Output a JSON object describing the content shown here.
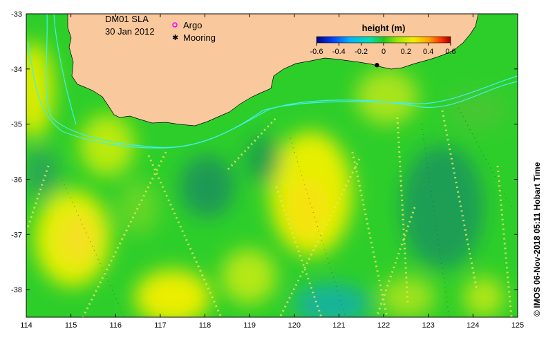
{
  "map": {
    "title": "DM01 SLA",
    "date": "30 Jan 2012",
    "legend": [
      {
        "label": "Argo",
        "symbol": "circle",
        "color": "#ff00ff"
      },
      {
        "label": "Mooring",
        "symbol": "star",
        "color": "#000000"
      }
    ],
    "lon_range": [
      114,
      125
    ],
    "lat_range": [
      -38.5,
      -33
    ],
    "lon_ticks": [
      "114",
      "115",
      "116",
      "117",
      "118",
      "119",
      "120",
      "121",
      "122",
      "123",
      "124",
      "125"
    ],
    "lat_ticks": [
      "-33",
      "-34",
      "-35",
      "-36",
      "-37",
      "-38"
    ],
    "land_color": "#f9c89c",
    "colorbar": {
      "title": "height (m)",
      "range": [
        -0.6,
        0.6
      ],
      "tick_labels": [
        "-0.6",
        "-0.4",
        "-0.2",
        "0",
        "0.2",
        "0.4",
        "0.6"
      ],
      "colors": [
        "#00007f",
        "#0040ff",
        "#00b4ff",
        "#00e0b0",
        "#22c81e",
        "#9ae600",
        "#f0f000",
        "#ffa000",
        "#ff3000",
        "#a00000"
      ]
    },
    "credit": "© IMOS 06-Nov-2018 05:11 Hobart Time",
    "mooring": {
      "lon": 121.85,
      "lat": -33.93
    }
  }
}
